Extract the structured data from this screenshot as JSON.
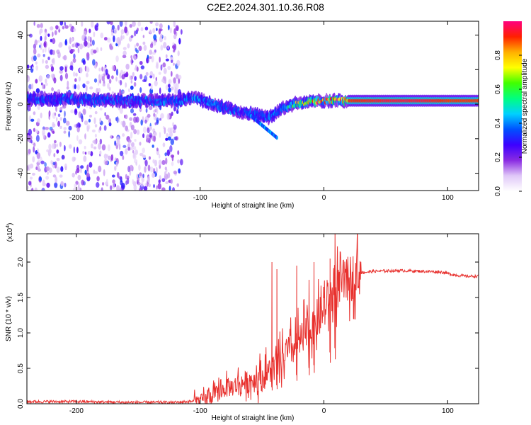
{
  "title": "C2E2.2024.301.10.36.R08",
  "chart_data": [
    {
      "type": "heatmap",
      "xlabel": "Height of straight line (km)",
      "ylabel": "Frequency (Hz)",
      "xlim": [
        -240,
        125
      ],
      "ylim": [
        -50,
        48
      ],
      "x_ticks": [
        -200,
        -100,
        0,
        100
      ],
      "y_ticks": [
        -40,
        -20,
        0,
        20,
        40
      ],
      "colorbar": {
        "label": "Normalized spectral amplitude",
        "range": [
          0,
          1
        ],
        "ticks": [
          "0.0",
          "0.2",
          "0.4",
          "0.6",
          "0.8"
        ],
        "colors": [
          "#ffffff",
          "#e0c8f8",
          "#8a2be2",
          "#3c00ff",
          "#0050ff",
          "#00d0ff",
          "#00ff80",
          "#40ff00",
          "#ffff00",
          "#ffb000",
          "#ff2000",
          "#ff007f"
        ]
      },
      "ridge": {
        "x": [
          -240,
          -200,
          -160,
          -120,
          -105,
          -90,
          -70,
          -55,
          -45,
          -35,
          -25,
          -15,
          0,
          20,
          50,
          80,
          100,
          125
        ],
        "freq": [
          3,
          3,
          2,
          2,
          4,
          0,
          -4,
          -6,
          -8,
          -3,
          0,
          1,
          2,
          2,
          2,
          2,
          2,
          2
        ],
        "amplitude": [
          0.3,
          0.3,
          0.3,
          0.3,
          0.4,
          0.35,
          0.3,
          0.35,
          0.35,
          0.4,
          0.6,
          0.8,
          0.85,
          0.9,
          0.95,
          0.95,
          0.9,
          0.9
        ]
      }
    },
    {
      "type": "line",
      "xlabel": "Height of straight line (km)",
      "ylabel": "SNR (10 * v/v)",
      "ymultiplier": "(x10",
      "ymultiplier_exp": "4",
      "ymultiplier_close": ")",
      "xlim": [
        -240,
        125
      ],
      "ylim": [
        0,
        2.4
      ],
      "x_ticks": [
        -200,
        -100,
        0,
        100
      ],
      "y_ticks": [
        "0.0",
        "0.5",
        "1.0",
        "1.5",
        "2.0"
      ],
      "color": "#e8312e",
      "series": [
        {
          "x": [
            -240,
            -200,
            -160,
            -120,
            -110,
            -100,
            -95,
            -90,
            -85,
            -80,
            -75,
            -70,
            -65,
            -60,
            -55,
            -50,
            -45,
            -40,
            -35,
            -30,
            -25,
            -20,
            -15,
            -10,
            -5,
            0,
            5,
            10,
            15,
            20,
            25,
            30,
            40,
            60,
            80,
            95,
            105,
            115,
            125
          ],
          "y": [
            0.03,
            0.03,
            0.02,
            0.02,
            0.03,
            0.04,
            0.06,
            0.1,
            0.15,
            0.2,
            0.22,
            0.25,
            0.28,
            0.3,
            0.32,
            0.35,
            0.42,
            0.5,
            0.55,
            0.7,
            0.75,
            0.85,
            0.95,
            1.05,
            1.15,
            1.3,
            1.45,
            1.6,
            1.68,
            1.72,
            1.8,
            1.85,
            1.87,
            1.88,
            1.87,
            1.86,
            1.82,
            1.8,
            1.8
          ]
        }
      ],
      "spikes": [
        {
          "x": -42,
          "y": 2.0
        },
        {
          "x": -38,
          "y": 1.9
        },
        {
          "x": -22,
          "y": 1.95
        },
        {
          "x": -12,
          "y": 1.75
        },
        {
          "x": -8,
          "y": 2.0
        },
        {
          "x": 5,
          "y": 2.05
        },
        {
          "x": 9,
          "y": 2.4
        }
      ]
    }
  ]
}
